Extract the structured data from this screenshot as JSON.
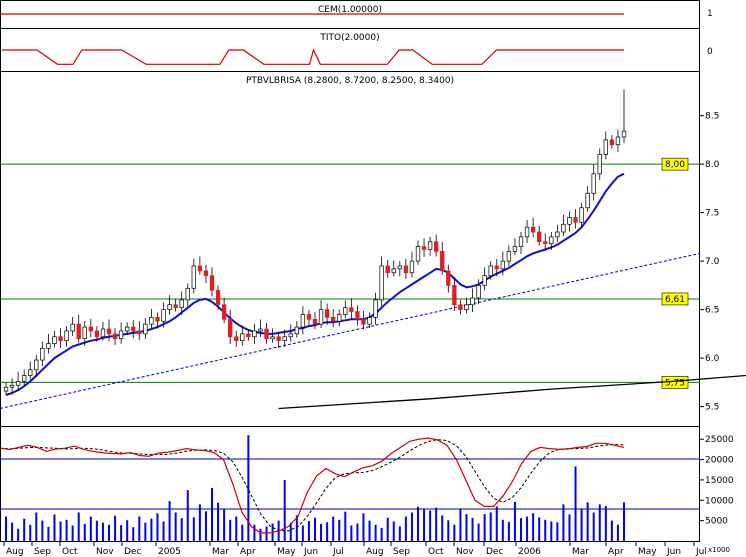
{
  "chart_data": [
    {
      "panel": "cem",
      "type": "line",
      "title": "CEM(1.00000)",
      "ylim": [
        -0.1,
        1.4
      ],
      "ytick_labels": [
        "1"
      ],
      "value": 1,
      "colors": {
        "line": "#d00000"
      }
    },
    {
      "panel": "tito",
      "type": "line",
      "title": "TITO(2.0000)",
      "ylim": [
        -0.7,
        0.7
      ],
      "ytick_labels": [
        "0"
      ],
      "series_points": [
        [
          "2004-07-20",
          0
        ],
        [
          "2004-08-25",
          0
        ],
        [
          "2004-09-15",
          -0.5
        ],
        [
          "2004-10-01",
          -0.5
        ],
        [
          "2004-10-10",
          0
        ],
        [
          "2004-11-20",
          0
        ],
        [
          "2004-12-15",
          -0.5
        ],
        [
          "2005-03-01",
          -0.5
        ],
        [
          "2005-03-10",
          0
        ],
        [
          "2005-03-25",
          0
        ],
        [
          "2005-04-15",
          -0.5
        ],
        [
          "2005-06-01",
          -0.5
        ],
        [
          "2005-06-05",
          0
        ],
        [
          "2005-06-12",
          -0.5
        ],
        [
          "2005-08-20",
          -0.5
        ],
        [
          "2005-09-01",
          0
        ],
        [
          "2005-09-15",
          0
        ],
        [
          "2005-10-05",
          -0.5
        ],
        [
          "2005-11-25",
          -0.5
        ],
        [
          "2005-12-10",
          0
        ],
        [
          "2006-04-20",
          0
        ]
      ],
      "colors": {
        "line": "#d00000"
      }
    },
    {
      "panel": "price",
      "type": "candlestick",
      "title": "PTBVLBRISA (8.2800, 8.7200, 8.2500, 8.3400)",
      "ylim": [
        5.3,
        8.95
      ],
      "ytick_labels": [
        "5.5",
        "6.0",
        "6.5",
        "7.0",
        "7.5",
        "8.0",
        "8.5"
      ],
      "ytick_values": [
        5.5,
        6.0,
        6.5,
        7.0,
        7.5,
        8.0,
        8.5
      ],
      "horizontal_lines": [
        {
          "value": 8.0,
          "label": "8,00"
        },
        {
          "value": 6.61,
          "label": "6,61"
        },
        {
          "value": 5.75,
          "label": "5,75"
        }
      ],
      "closes": [
        5.7,
        5.72,
        5.76,
        5.82,
        5.88,
        5.98,
        6.1,
        6.15,
        6.22,
        6.18,
        6.28,
        6.35,
        6.2,
        6.32,
        6.28,
        6.22,
        6.3,
        6.25,
        6.2,
        6.28,
        6.32,
        6.28,
        6.25,
        6.35,
        6.42,
        6.38,
        6.5,
        6.55,
        6.52,
        6.6,
        6.72,
        6.95,
        6.9,
        6.85,
        6.7,
        6.55,
        6.4,
        6.22,
        6.18,
        6.25,
        6.22,
        6.28,
        6.3,
        6.2,
        6.22,
        6.18,
        6.22,
        6.25,
        6.32,
        6.45,
        6.4,
        6.35,
        6.5,
        6.42,
        6.38,
        6.45,
        6.52,
        6.48,
        6.4,
        6.35,
        6.42,
        6.6,
        6.95,
        6.88,
        6.92,
        6.95,
        6.88,
        7.0,
        7.15,
        7.12,
        7.2,
        7.1,
        6.9,
        6.75,
        6.55,
        6.5,
        6.55,
        6.62,
        6.75,
        6.85,
        6.95,
        6.92,
        7.0,
        7.1,
        7.15,
        7.25,
        7.35,
        7.3,
        7.2,
        7.18,
        7.25,
        7.3,
        7.38,
        7.45,
        7.4,
        7.55,
        7.7,
        7.9,
        8.1,
        8.25,
        8.2,
        8.28,
        8.34
      ],
      "sma": [
        5.62,
        5.64,
        5.67,
        5.71,
        5.76,
        5.82,
        5.88,
        5.94,
        6.0,
        6.04,
        6.08,
        6.12,
        6.14,
        6.16,
        6.18,
        6.19,
        6.21,
        6.22,
        6.23,
        6.24,
        6.25,
        6.26,
        6.27,
        6.28,
        6.3,
        6.32,
        6.35,
        6.38,
        6.42,
        6.47,
        6.52,
        6.57,
        6.6,
        6.61,
        6.58,
        6.53,
        6.47,
        6.41,
        6.36,
        6.32,
        6.29,
        6.27,
        6.26,
        6.25,
        6.25,
        6.26,
        6.27,
        6.28,
        6.3,
        6.31,
        6.33,
        6.34,
        6.36,
        6.37,
        6.37,
        6.38,
        6.39,
        6.4,
        6.4,
        6.4,
        6.42,
        6.46,
        6.52,
        6.58,
        6.63,
        6.68,
        6.72,
        6.76,
        6.8,
        6.84,
        6.88,
        6.92,
        6.91,
        6.88,
        6.82,
        6.76,
        6.73,
        6.74,
        6.76,
        6.8,
        6.84,
        6.87,
        6.9,
        6.93,
        6.97,
        7.01,
        7.05,
        7.08,
        7.1,
        7.12,
        7.14,
        7.17,
        7.21,
        7.25,
        7.29,
        7.35,
        7.43,
        7.52,
        7.62,
        7.72,
        7.8,
        7.87,
        7.9
      ],
      "sma_long": [
        [
          45,
          5.48
        ],
        [
          70,
          5.58
        ],
        [
          90,
          5.68
        ],
        [
          110,
          5.76
        ],
        [
          130,
          5.86
        ],
        [
          150,
          5.96
        ],
        [
          160,
          6.05
        ],
        [
          164,
          6.1
        ]
      ],
      "trend_line": [
        [
          0,
          5.48
        ],
        [
          183,
          7.08
        ]
      ],
      "colors": {
        "up": "#ffffff",
        "down": "#e02020",
        "sma": "#1010d0",
        "sma_long": "#000000",
        "trend": "#0000c0",
        "hline": "#008000",
        "label_bg": "#ffff00"
      }
    },
    {
      "panel": "volume",
      "type": "bar",
      "ylim": [
        0,
        28000
      ],
      "ytick_labels": [
        "5000",
        "10000",
        "15000",
        "20000",
        "25000"
      ],
      "ytick_values": [
        5000,
        10000,
        15000,
        20000,
        25000
      ],
      "ytick_unit": "x1000",
      "values": [
        6000,
        4500,
        3000,
        5500,
        4000,
        7000,
        5000,
        3500,
        6500,
        4800,
        5200,
        3800,
        7000,
        4200,
        6000,
        5000,
        4500,
        4000,
        6200,
        3900,
        5100,
        3400,
        6000,
        4500,
        5500,
        6800,
        4800,
        9800,
        7000,
        5600,
        12500,
        5800,
        9000,
        7300,
        13000,
        9400,
        7800,
        5200,
        6000,
        4000,
        26000,
        4000,
        3000,
        3600,
        4300,
        5000,
        15000,
        4500,
        6300,
        3800,
        4900,
        5700,
        4200,
        4600,
        6000,
        5200,
        7200,
        3800,
        4300,
        6800,
        5000,
        4000,
        3200,
        5700,
        4800,
        3600,
        6000,
        7000,
        8400,
        7800,
        7500,
        8200,
        6300,
        5100,
        4000,
        8000,
        6600,
        5700,
        4300,
        6600,
        7000,
        8500,
        5200,
        4700,
        9600,
        5600,
        6000,
        6800,
        5800,
        5200,
        4800,
        4600,
        9000,
        6500,
        18300,
        8000,
        9500,
        7000,
        9000,
        8600,
        5000,
        4000,
        9500
      ],
      "oscillator": [
        22800,
        22500,
        23000,
        23500,
        23000,
        22000,
        22600,
        22800,
        23300,
        22500,
        22000,
        21700,
        21500,
        21400,
        21700,
        21000,
        20800,
        21600,
        21800,
        22200,
        22700,
        22400,
        22200,
        21700,
        20000,
        14000,
        7000,
        3500,
        2000,
        2000,
        2500,
        3600,
        6000,
        12000,
        16000,
        17800,
        16500,
        15800,
        17000,
        18000,
        18500,
        19600,
        21500,
        23000,
        24500,
        25000,
        25300,
        24800,
        23500,
        20000,
        15000,
        10000,
        8500,
        8500,
        11000,
        14500,
        19000,
        22000,
        23000,
        22700,
        22500,
        22600,
        23000,
        23200,
        24000,
        24000,
        23500,
        23000
      ],
      "oscillator_signal_lag": 3,
      "colors": {
        "bars": "#0000ff",
        "osc": "#d00000",
        "signal": "#000000",
        "hline": "#0000aa"
      }
    },
    {
      "panel": "x-axis",
      "type": "labels",
      "xtick_labels": [
        "Aug",
        "Sep",
        "Oct",
        "Nov",
        "Dec",
        "2005",
        "Mar",
        "Apr",
        "May",
        "Jun",
        "Jul",
        "Aug",
        "Sep",
        "Oct",
        "Nov",
        "Dec",
        "2006",
        "Mar",
        "Apr",
        "May",
        "Jun",
        "Jul"
      ]
    }
  ]
}
